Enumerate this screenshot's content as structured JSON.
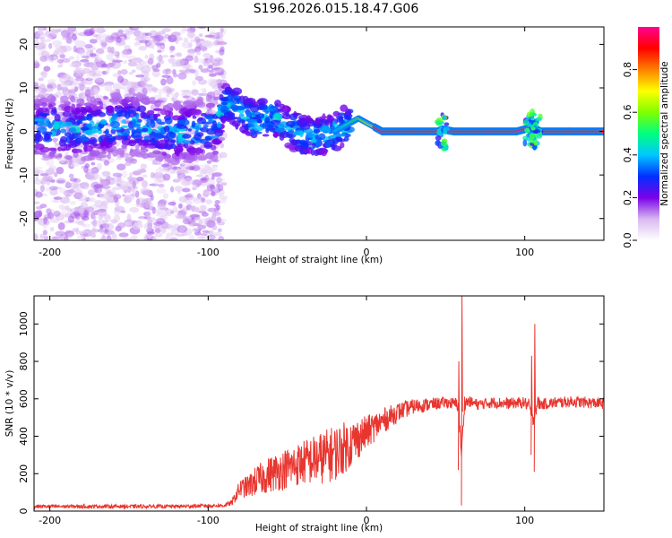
{
  "title": "S196.2026.015.18.47.G06",
  "chart_data": [
    {
      "type": "heatmap",
      "xlabel": "Height of straight line (km)",
      "ylabel": "Frequency (Hz)",
      "xlim": [
        -210,
        150
      ],
      "ylim": [
        -25,
        24
      ],
      "xticks": [
        -200,
        -100,
        0,
        100
      ],
      "yticks": [
        -20,
        -10,
        0,
        10,
        20
      ],
      "colorbar": {
        "label": "Normalized spectral amplitude",
        "range": [
          0,
          1
        ],
        "ticks": [
          0.0,
          0.2,
          0.4,
          0.6,
          0.8
        ],
        "colors": [
          "#ffffff",
          "#d8b8f0",
          "#7a00e8",
          "#0030ff",
          "#00c8ff",
          "#00ff80",
          "#80ff00",
          "#ffff00",
          "#ff8000",
          "#ff0000",
          "#ff0090"
        ]
      },
      "ridge": {
        "description": "dominant frequency track",
        "points": [
          [
            -210,
            1
          ],
          [
            -180,
            0.5
          ],
          [
            -150,
            2
          ],
          [
            -120,
            -0.5
          ],
          [
            -95,
            1
          ],
          [
            -90,
            7
          ],
          [
            -80,
            5
          ],
          [
            -70,
            2
          ],
          [
            -60,
            4
          ],
          [
            -50,
            1
          ],
          [
            -40,
            -1
          ],
          [
            -30,
            -1
          ],
          [
            -20,
            0
          ],
          [
            -10,
            2
          ],
          [
            -5,
            3
          ],
          [
            0,
            2
          ],
          [
            5,
            1
          ],
          [
            10,
            0
          ],
          [
            20,
            0
          ],
          [
            45,
            0
          ],
          [
            48,
            0.5
          ],
          [
            55,
            0
          ],
          [
            95,
            0
          ],
          [
            100,
            0.5
          ],
          [
            105,
            1
          ],
          [
            110,
            0
          ],
          [
            150,
            0
          ]
        ]
      }
    },
    {
      "type": "line",
      "xlabel": "Height of straight line (km)",
      "ylabel": "SNR (10 * v/v)",
      "xlim": [
        -210,
        150
      ],
      "ylim": [
        0,
        1150
      ],
      "xticks": [
        -200,
        -100,
        0,
        100
      ],
      "yticks": [
        0,
        200,
        400,
        600,
        800,
        1000
      ],
      "color": "#e8352f",
      "envelope": {
        "x": [
          -210,
          -180,
          -150,
          -120,
          -90,
          -85,
          -80,
          -75,
          -70,
          -60,
          -50,
          -40,
          -30,
          -20,
          -10,
          0,
          10,
          20,
          30,
          40,
          50,
          55,
          58,
          60,
          62,
          65,
          70,
          80,
          90,
          100,
          103,
          105,
          108,
          110,
          120,
          130,
          140,
          150
        ],
        "mean": [
          25,
          25,
          25,
          25,
          30,
          45,
          120,
          130,
          160,
          200,
          230,
          260,
          280,
          310,
          360,
          420,
          480,
          530,
          560,
          570,
          580,
          575,
          570,
          300,
          580,
          585,
          570,
          580,
          575,
          580,
          560,
          480,
          580,
          570,
          580,
          585,
          580,
          575
        ],
        "spread": [
          10,
          10,
          10,
          10,
          10,
          15,
          50,
          60,
          80,
          100,
          110,
          120,
          140,
          150,
          130,
          90,
          70,
          50,
          40,
          35,
          30,
          30,
          40,
          40,
          40,
          30,
          30,
          30,
          30,
          30,
          40,
          40,
          40,
          30,
          30,
          30,
          30,
          30
        ]
      },
      "spikes": [
        {
          "x": 60,
          "min": 30,
          "max": 1150
        },
        {
          "x": 58,
          "min": 220,
          "max": 800
        },
        {
          "x": 106,
          "min": 210,
          "max": 1000
        },
        {
          "x": 104,
          "min": 300,
          "max": 830
        }
      ]
    }
  ]
}
